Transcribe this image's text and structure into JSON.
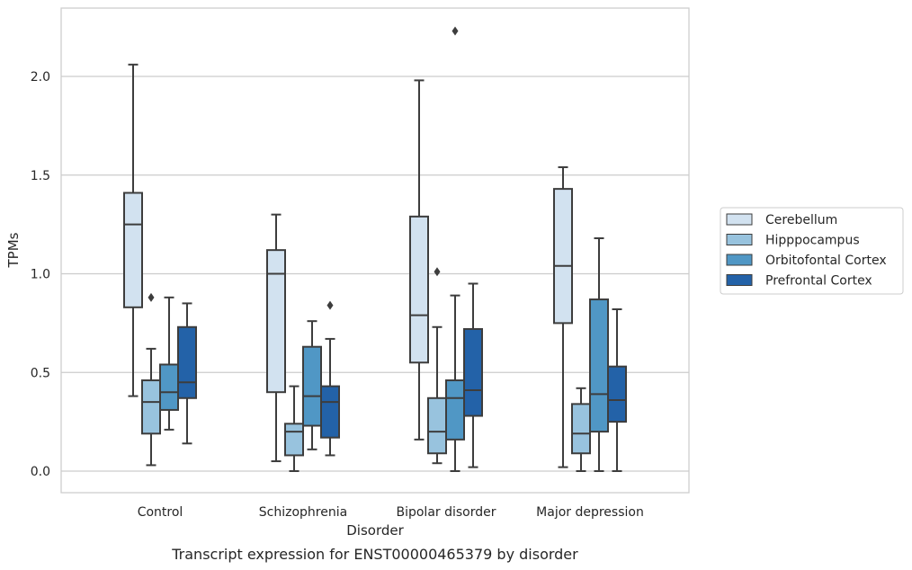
{
  "chart_data": {
    "type": "boxplot",
    "xlabel": "Disorder",
    "ylabel": "TPMs",
    "caption": "Transcript expression for ENST00000465379 by disorder",
    "ylim": [
      -0.1,
      2.35
    ],
    "yticks": [
      "0.0",
      "0.5",
      "1.0",
      "1.5",
      "2.0"
    ],
    "grid": "horizontal",
    "legend_position": "right",
    "categories": [
      "Control",
      "Schizophrenia",
      "Bipolar disorder",
      "Major depression"
    ],
    "series": [
      {
        "name": "Cerebellum",
        "color": "#d2e2f0",
        "boxes": [
          {
            "whisker_low": 0.38,
            "q1": 0.83,
            "median": 1.25,
            "q3": 1.41,
            "whisker_high": 2.06,
            "outliers": []
          },
          {
            "whisker_low": 0.05,
            "q1": 0.4,
            "median": 1.0,
            "q3": 1.12,
            "whisker_high": 1.3,
            "outliers": []
          },
          {
            "whisker_low": 0.16,
            "q1": 0.55,
            "median": 0.79,
            "q3": 1.29,
            "whisker_high": 1.98,
            "outliers": []
          },
          {
            "whisker_low": 0.02,
            "q1": 0.75,
            "median": 1.04,
            "q3": 1.43,
            "whisker_high": 1.54,
            "outliers": []
          }
        ]
      },
      {
        "name": "Hipppocampus",
        "color": "#98c3de",
        "boxes": [
          {
            "whisker_low": 0.03,
            "q1": 0.19,
            "median": 0.35,
            "q3": 0.46,
            "whisker_high": 0.62,
            "outliers": [
              0.88
            ]
          },
          {
            "whisker_low": 0.0,
            "q1": 0.08,
            "median": 0.2,
            "q3": 0.24,
            "whisker_high": 0.43,
            "outliers": []
          },
          {
            "whisker_low": 0.04,
            "q1": 0.09,
            "median": 0.2,
            "q3": 0.37,
            "whisker_high": 0.73,
            "outliers": [
              1.01
            ]
          },
          {
            "whisker_low": 0.0,
            "q1": 0.09,
            "median": 0.19,
            "q3": 0.34,
            "whisker_high": 0.42,
            "outliers": []
          }
        ]
      },
      {
        "name": "Orbitofontal Cortex",
        "color": "#5097c5",
        "boxes": [
          {
            "whisker_low": 0.21,
            "q1": 0.31,
            "median": 0.4,
            "q3": 0.54,
            "whisker_high": 0.88,
            "outliers": []
          },
          {
            "whisker_low": 0.11,
            "q1": 0.23,
            "median": 0.38,
            "q3": 0.63,
            "whisker_high": 0.76,
            "outliers": []
          },
          {
            "whisker_low": 0.0,
            "q1": 0.16,
            "median": 0.37,
            "q3": 0.46,
            "whisker_high": 0.89,
            "outliers": [
              2.23
            ]
          },
          {
            "whisker_low": 0.0,
            "q1": 0.2,
            "median": 0.39,
            "q3": 0.87,
            "whisker_high": 1.18,
            "outliers": []
          }
        ]
      },
      {
        "name": "Prefrontal Cortex",
        "color": "#2362a8",
        "boxes": [
          {
            "whisker_low": 0.14,
            "q1": 0.37,
            "median": 0.45,
            "q3": 0.73,
            "whisker_high": 0.85,
            "outliers": []
          },
          {
            "whisker_low": 0.08,
            "q1": 0.17,
            "median": 0.35,
            "q3": 0.43,
            "whisker_high": 0.67,
            "outliers": [
              0.84
            ]
          },
          {
            "whisker_low": 0.02,
            "q1": 0.28,
            "median": 0.41,
            "q3": 0.72,
            "whisker_high": 0.95,
            "outliers": []
          },
          {
            "whisker_low": 0.0,
            "q1": 0.25,
            "median": 0.36,
            "q3": 0.53,
            "whisker_high": 0.82,
            "outliers": []
          }
        ]
      }
    ]
  }
}
